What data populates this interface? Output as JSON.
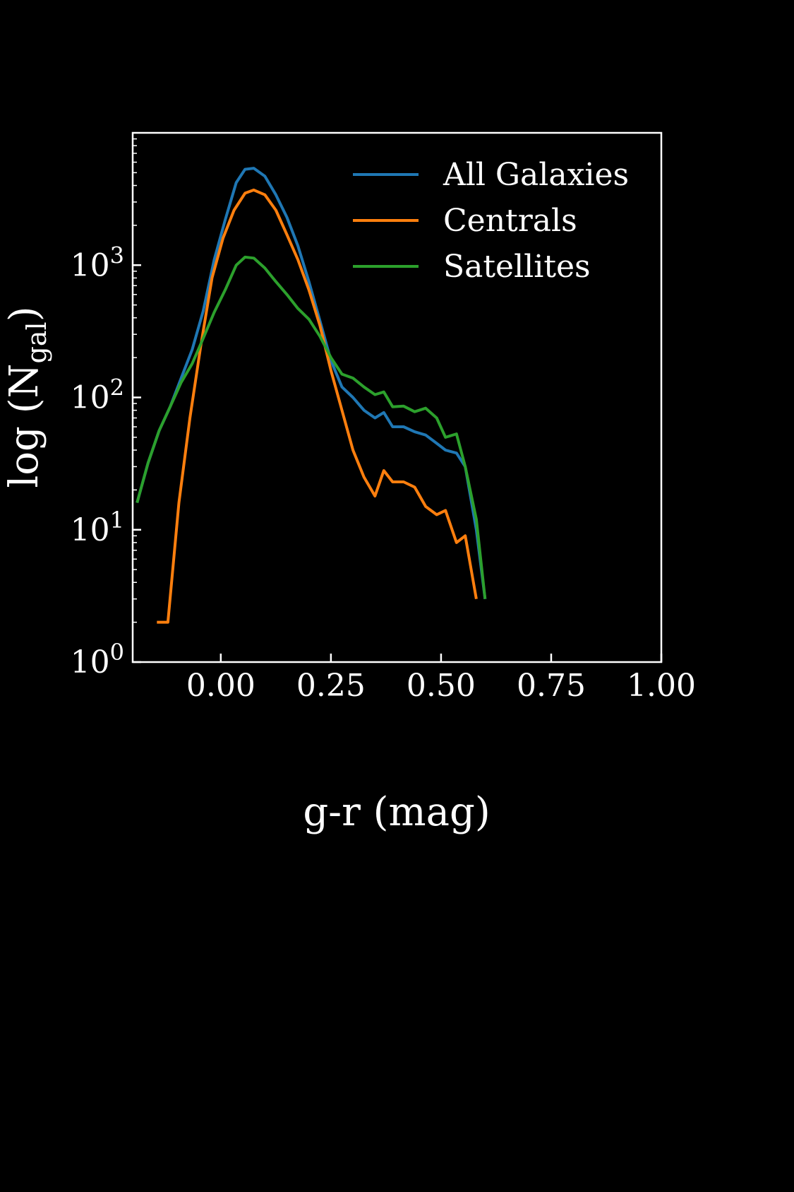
{
  "chart_data": {
    "type": "line",
    "xlabel": "g-r (mag)",
    "ylabel_main": "log (N",
    "ylabel_sub": "gal",
    "ylabel_close": ")",
    "xlim": [
      -0.2,
      1.0
    ],
    "ylim": [
      1,
      10000
    ],
    "yscale": "log",
    "grid": false,
    "legend_position": "top-right",
    "x_ticks": [
      {
        "value": 0.0,
        "label": "0.00"
      },
      {
        "value": 0.25,
        "label": "0.25"
      },
      {
        "value": 0.5,
        "label": "0.50"
      },
      {
        "value": 0.75,
        "label": "0.75"
      },
      {
        "value": 1.0,
        "label": "1.00"
      }
    ],
    "y_ticks": [
      {
        "value": 1,
        "base": "10",
        "exp": "0"
      },
      {
        "value": 10,
        "base": "10",
        "exp": "1"
      },
      {
        "value": 100,
        "base": "10",
        "exp": "2"
      },
      {
        "value": 1000,
        "base": "10",
        "exp": "3"
      }
    ],
    "series": [
      {
        "name": "All Galaxies",
        "color": "#1f77b4",
        "x": [
          -0.19,
          -0.165,
          -0.14,
          -0.115,
          -0.09,
          -0.065,
          -0.04,
          -0.015,
          0.01,
          0.035,
          0.055,
          0.075,
          0.1,
          0.125,
          0.15,
          0.175,
          0.2,
          0.225,
          0.25,
          0.275,
          0.3,
          0.325,
          0.35,
          0.37,
          0.39,
          0.415,
          0.44,
          0.465,
          0.49,
          0.51,
          0.535,
          0.555,
          0.58,
          0.6
        ],
        "y": [
          16,
          32,
          56,
          85,
          140,
          230,
          450,
          1100,
          2200,
          4200,
          5300,
          5400,
          4700,
          3400,
          2300,
          1400,
          750,
          380,
          190,
          120,
          100,
          80,
          70,
          77,
          60,
          60,
          55,
          52,
          45,
          40,
          38,
          30,
          10,
          3
        ]
      },
      {
        "name": "Centrals",
        "color": "#ff7f0e",
        "x": [
          -0.145,
          -0.12,
          -0.095,
          -0.07,
          -0.045,
          -0.02,
          0.005,
          0.03,
          0.055,
          0.075,
          0.1,
          0.125,
          0.15,
          0.175,
          0.2,
          0.225,
          0.25,
          0.275,
          0.3,
          0.325,
          0.35,
          0.37,
          0.39,
          0.415,
          0.44,
          0.465,
          0.49,
          0.51,
          0.535,
          0.555,
          0.58
        ],
        "y": [
          2,
          2,
          16,
          70,
          250,
          800,
          1600,
          2600,
          3500,
          3700,
          3400,
          2600,
          1700,
          1100,
          650,
          350,
          160,
          80,
          40,
          25,
          18,
          28,
          23,
          23,
          21,
          15,
          13,
          14,
          8,
          9,
          3
        ]
      },
      {
        "name": "Satellites",
        "color": "#2ca02c",
        "x": [
          -0.19,
          -0.165,
          -0.14,
          -0.115,
          -0.09,
          -0.065,
          -0.04,
          -0.015,
          0.01,
          0.035,
          0.055,
          0.075,
          0.1,
          0.125,
          0.15,
          0.175,
          0.2,
          0.225,
          0.25,
          0.275,
          0.3,
          0.325,
          0.35,
          0.37,
          0.39,
          0.415,
          0.44,
          0.465,
          0.49,
          0.51,
          0.535,
          0.555,
          0.58,
          0.6
        ],
        "y": [
          16,
          32,
          56,
          85,
          130,
          180,
          280,
          440,
          650,
          1000,
          1150,
          1130,
          950,
          750,
          600,
          470,
          390,
          290,
          200,
          150,
          140,
          120,
          105,
          110,
          85,
          86,
          78,
          83,
          70,
          50,
          53,
          30,
          12,
          3
        ]
      }
    ]
  }
}
